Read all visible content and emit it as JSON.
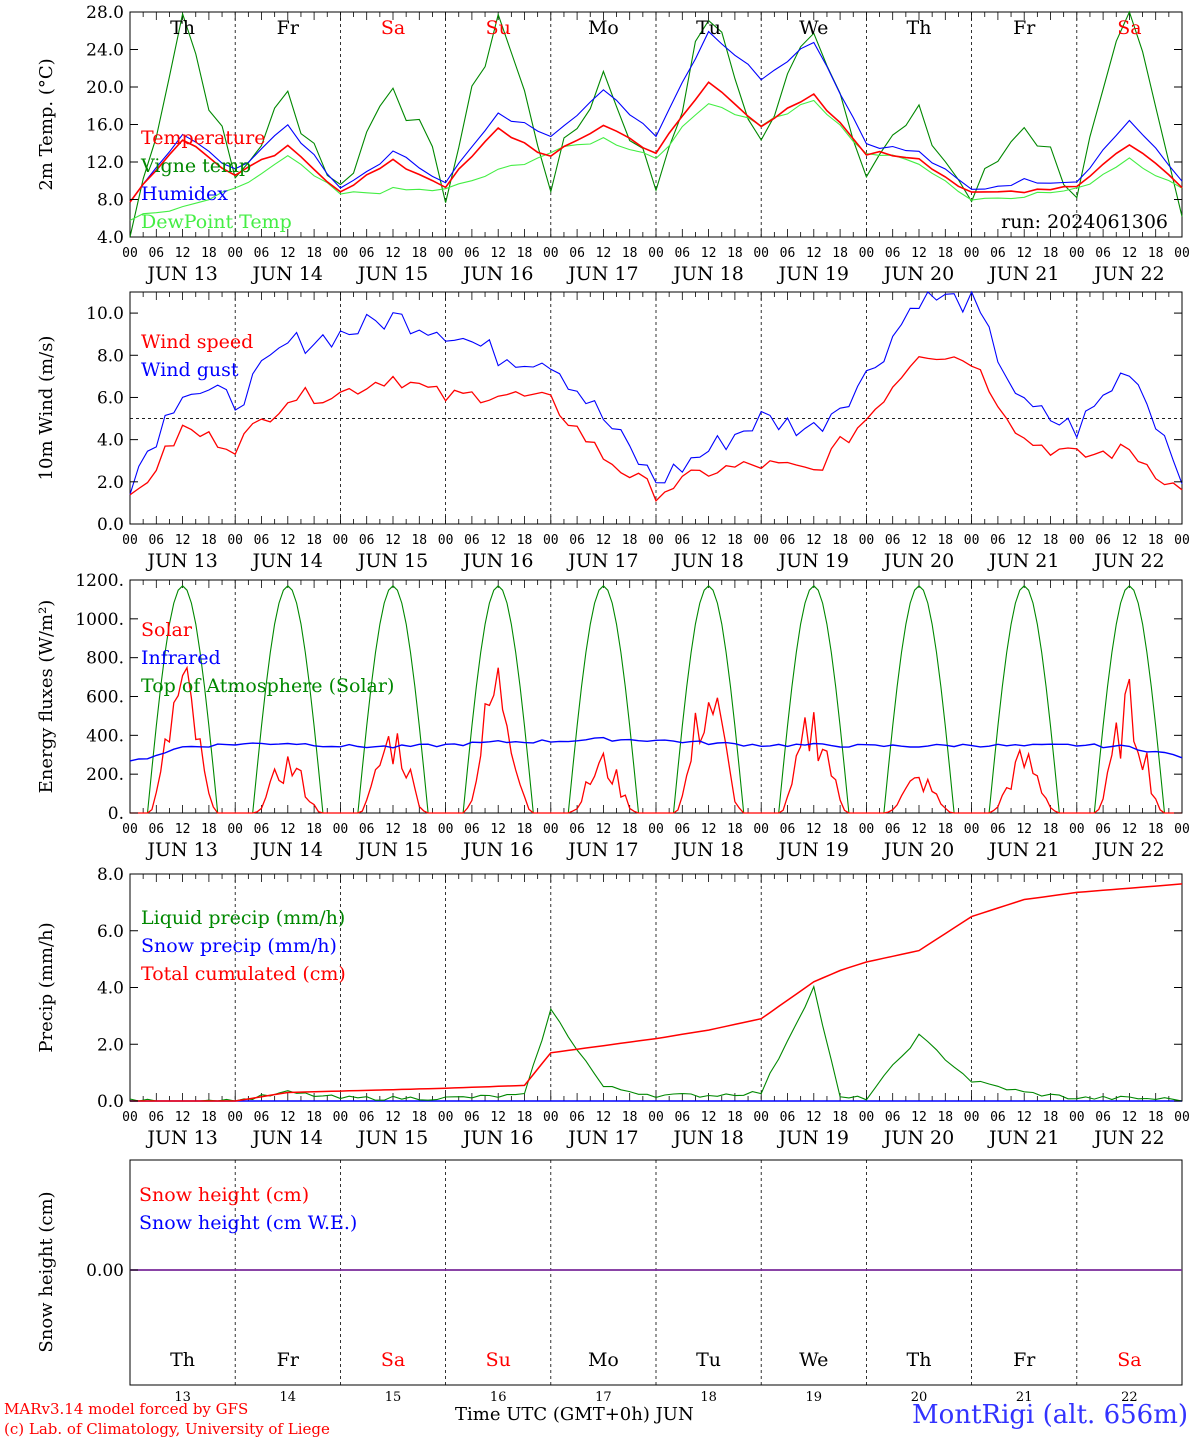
{
  "colors": {
    "temperature": "#ff0000",
    "vigne": "#008800",
    "humidex": "#0000ff",
    "dewpoint": "#44ee44",
    "wind_speed": "#ff0000",
    "wind_gust": "#0000ff",
    "solar": "#ff0000",
    "infrared": "#0000ff",
    "toa": "#008800",
    "liquid": "#008800",
    "snow_precip": "#0000ff",
    "cumulated": "#ff0000",
    "snow_cm": "#ff0000",
    "snow_we": "#0000ff",
    "weekend_day": "#ff0000",
    "weekday": "#000000"
  },
  "days_top": [
    "Th",
    "Fr",
    "Sa",
    "Su",
    "Mo",
    "Tu",
    "We",
    "Th",
    "Fr",
    "Sa"
  ],
  "weekend_flags": [
    false,
    false,
    true,
    true,
    false,
    false,
    false,
    false,
    false,
    true
  ],
  "date_labels": [
    "JUN 13",
    "JUN 14",
    "JUN 15",
    "JUN 16",
    "JUN 17",
    "JUN 18",
    "JUN 19",
    "JUN 20",
    "JUN 21",
    "JUN 22"
  ],
  "hour_labels": [
    "00",
    "06",
    "12",
    "18"
  ],
  "day_numbers": [
    "13",
    "14",
    "15",
    "16",
    "17",
    "18",
    "19",
    "20",
    "21",
    "22"
  ],
  "footer": {
    "model": "MARv3.14 model forced by GFS",
    "copyright": "(c) Lab. of Climatology, University of Liege",
    "xlabel": "Time UTC (GMT+0h) JUN",
    "station": "MontRigi (alt. 656m)"
  },
  "chart_data": [
    {
      "type": "line",
      "ylabel": "2m Temp. (°C)",
      "ylim": [
        4.0,
        28.0
      ],
      "yticks": [
        "4.0",
        "8.0",
        "12.0",
        "16.0",
        "20.0",
        "24.0",
        "28.0"
      ],
      "annotation": "run: 2024061306",
      "x_hours": [
        0,
        12,
        24,
        36,
        48,
        60,
        72,
        84,
        96,
        108,
        120,
        132,
        144,
        156,
        168,
        180,
        192,
        204,
        216,
        228,
        240
      ],
      "series": [
        {
          "name": "Temperature",
          "values": [
            8.0,
            14.5,
            10.5,
            13.5,
            9.0,
            12.0,
            9.5,
            15.5,
            12.5,
            16.0,
            13.0,
            20.5,
            16.0,
            19.0,
            13.0,
            12.5,
            8.5,
            9.0,
            9.5,
            14.0,
            9.5
          ]
        },
        {
          "name": "Vigne temp",
          "values": [
            4.0,
            28.0,
            10.0,
            19.0,
            9.0,
            21.0,
            9.0,
            28.0,
            10.0,
            21.5,
            9.5,
            28.0,
            14.0,
            27.0,
            12.0,
            16.5,
            8.0,
            16.5,
            9.0,
            28.0,
            6.0
          ]
        },
        {
          "name": "Humidex",
          "values": [
            8.0,
            15.0,
            11.0,
            16.0,
            9.0,
            13.0,
            10.0,
            17.0,
            15.0,
            19.5,
            15.0,
            26.0,
            21.0,
            25.0,
            14.0,
            13.0,
            9.0,
            10.0,
            10.0,
            16.5,
            10.0
          ]
        },
        {
          "name": "DewPoint Temp",
          "values": [
            6.0,
            7.0,
            9.0,
            12.5,
            8.5,
            9.0,
            9.0,
            11.0,
            13.0,
            14.5,
            12.5,
            18.5,
            16.0,
            18.5,
            13.0,
            12.0,
            8.0,
            8.5,
            9.0,
            12.5,
            9.0
          ]
        }
      ]
    },
    {
      "type": "line",
      "ylabel": "10m Wind (m/s)",
      "ylim": [
        0.0,
        11.0
      ],
      "yticks": [
        "0.0",
        "2.0",
        "4.0",
        "6.0",
        "8.0",
        "10.0"
      ],
      "threshold": 5.0,
      "x_hours": [
        0,
        12,
        24,
        36,
        48,
        60,
        72,
        84,
        96,
        108,
        120,
        132,
        144,
        156,
        168,
        180,
        192,
        204,
        216,
        228,
        240
      ],
      "series": [
        {
          "name": "Wind speed",
          "values": [
            1.0,
            4.5,
            3.7,
            6.0,
            6.2,
            7.0,
            6.0,
            6.2,
            5.8,
            3.2,
            1.5,
            2.5,
            2.8,
            2.5,
            5.0,
            8.2,
            7.8,
            4.0,
            3.2,
            3.5,
            1.5
          ]
        },
        {
          "name": "Wind gust",
          "values": [
            2.0,
            6.5,
            5.8,
            8.5,
            9.0,
            9.8,
            9.2,
            8.0,
            7.8,
            5.0,
            2.0,
            3.5,
            5.0,
            4.5,
            7.0,
            10.8,
            10.5,
            5.5,
            4.5,
            7.5,
            2.5
          ]
        }
      ]
    },
    {
      "type": "line",
      "ylabel": "Energy fluxes (W/m²)",
      "ylim": [
        0,
        1200
      ],
      "yticks": [
        "0.",
        "200.",
        "400.",
        "600.",
        "800.",
        "1000.",
        "1200."
      ],
      "series": [
        {
          "name": "Solar",
          "peaks": [
            820,
            330,
            500,
            860,
            330,
            780,
            600,
            220,
            350,
            700
          ]
        },
        {
          "name": "Infrared",
          "values": [
            260,
            340,
            355,
            360,
            345,
            340,
            350,
            365,
            370,
            380,
            375,
            360,
            350,
            350,
            345,
            345,
            350,
            345,
            350,
            340,
            290
          ]
        },
        {
          "name": "Top of Atmosphere (Solar)",
          "peaks": [
            1170,
            1170,
            1170,
            1170,
            1170,
            1170,
            1170,
            1170,
            1170,
            1170
          ]
        }
      ]
    },
    {
      "type": "line",
      "ylabel": "Precip (mm/h)",
      "ylim": [
        0.0,
        8.0
      ],
      "yticks": [
        "0.0",
        "2.0",
        "4.0",
        "6.0",
        "8.0"
      ],
      "x_hours": [
        0,
        24,
        36,
        48,
        72,
        90,
        96,
        108,
        120,
        132,
        144,
        156,
        162,
        168,
        180,
        192,
        204,
        216,
        228,
        240
      ],
      "series": [
        {
          "name": "Liquid precip (mm/h)",
          "values": [
            0,
            0,
            0.3,
            0.1,
            0.1,
            0.2,
            3.2,
            0.5,
            0.2,
            0.2,
            0.3,
            4.0,
            0.1,
            0.1,
            2.3,
            0.7,
            0.3,
            0.1,
            0.1,
            0.05
          ]
        },
        {
          "name": "Snow precip (mm/h)",
          "values": [
            0,
            0,
            0,
            0,
            0,
            0,
            0,
            0,
            0,
            0,
            0,
            0,
            0,
            0,
            0,
            0,
            0,
            0,
            0,
            0
          ]
        },
        {
          "name": "Total cumulated (cm)",
          "values": [
            0,
            0,
            0.3,
            0.35,
            0.45,
            0.55,
            1.7,
            1.95,
            2.2,
            2.5,
            2.9,
            4.2,
            4.6,
            4.9,
            5.3,
            6.5,
            7.1,
            7.35,
            7.5,
            7.65
          ]
        }
      ]
    },
    {
      "type": "line",
      "ylabel": "Snow height (cm)",
      "yticks": [
        "0.00"
      ],
      "series": [
        {
          "name": "Snow height (cm)",
          "values": [
            0,
            0
          ]
        },
        {
          "name": "Snow height (cm W.E.)",
          "values": [
            0,
            0
          ]
        }
      ]
    }
  ]
}
